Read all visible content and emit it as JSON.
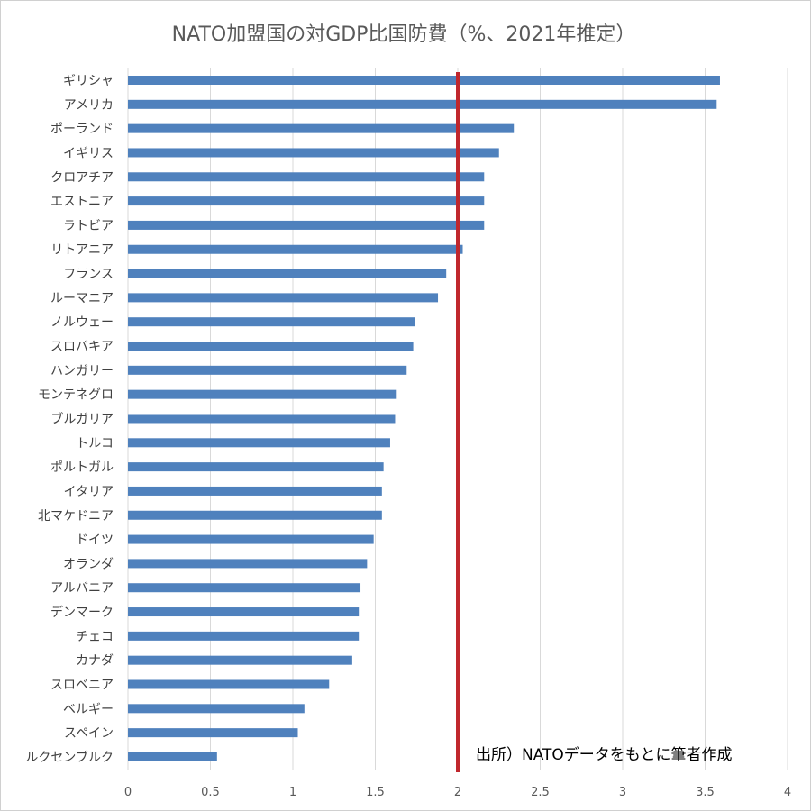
{
  "chart_data": {
    "type": "bar",
    "orientation": "horizontal",
    "title": "NATO加盟国の対GDP比国防費（%、2021年推定）",
    "categories": [
      "ギリシャ",
      "アメリカ",
      "ポーランド",
      "イギリス",
      "クロアチア",
      "エストニア",
      "ラトビア",
      "リトアニア",
      "フランス",
      "ルーマニア",
      "ノルウェー",
      "スロバキア",
      "ハンガリー",
      "モンテネグロ",
      "ブルガリア",
      "トルコ",
      "ポルトガル",
      "イタリア",
      "北マケドニア",
      "ドイツ",
      "オランダ",
      "アルバニア",
      "デンマーク",
      "チェコ",
      "カナダ",
      "スロベニア",
      "ベルギー",
      "スペイン",
      "ルクセンブルク"
    ],
    "values": [
      3.59,
      3.57,
      2.34,
      2.25,
      2.16,
      2.16,
      2.16,
      2.03,
      1.93,
      1.88,
      1.74,
      1.73,
      1.69,
      1.63,
      1.62,
      1.59,
      1.55,
      1.54,
      1.54,
      1.49,
      1.45,
      1.41,
      1.4,
      1.4,
      1.36,
      1.22,
      1.07,
      1.03,
      0.54
    ],
    "xlim": [
      0,
      4
    ],
    "x_ticks": [
      0,
      0.5,
      1,
      1.5,
      2,
      2.5,
      3,
      3.5,
      4
    ],
    "x_tick_labels": [
      "0",
      "0.5",
      "1",
      "1.5",
      "2",
      "2.5",
      "3",
      "3.5",
      "4"
    ],
    "xlabel": "",
    "ylabel": "",
    "grid": "vertical",
    "reference_line": {
      "x": 2
    },
    "annotation": "出所）NATOデータをもとに筆者作成",
    "colors": {
      "bar": "#4f81bd",
      "reference_line": "#c0272d",
      "grid": "#d9d9d9",
      "text": "#404040"
    }
  }
}
